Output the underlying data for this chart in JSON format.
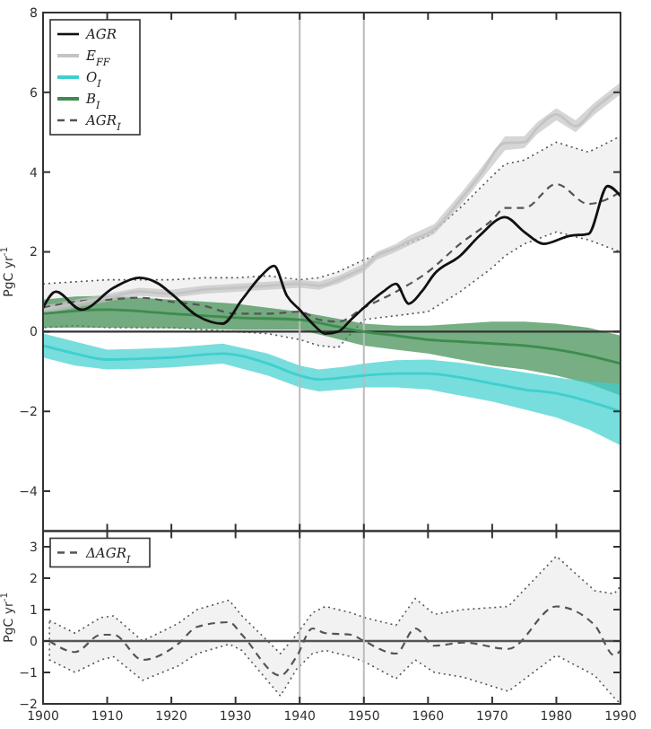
{
  "chart_data": [
    {
      "type": "line",
      "ylabel": "PgC yr$^{-1}$",
      "xlim": [
        1900,
        1990
      ],
      "xticks": [
        1900,
        1910,
        1920,
        1930,
        1940,
        1950,
        1960,
        1970,
        1980,
        1990
      ],
      "ylim": [
        -5,
        8
      ],
      "yticks": [
        -4,
        -2,
        0,
        2,
        4,
        6,
        8
      ],
      "tick_labels": "y",
      "grid": false,
      "legend": "top left",
      "ref_lines": [
        {
          "axis": "y",
          "value": 0,
          "color": "#333333"
        },
        {
          "axis": "x",
          "value": 1940,
          "color": "#bbbbbb"
        },
        {
          "axis": "x",
          "value": 1950,
          "color": "#bbbbbb"
        }
      ],
      "series": [
        {
          "name": "AGR",
          "color": "#111111",
          "line_style": "solid",
          "x": [
            1900,
            1902,
            1906,
            1911,
            1915,
            1918,
            1920,
            1924,
            1928,
            1931,
            1934,
            1936,
            1938,
            1940,
            1942,
            1944,
            1946,
            1948,
            1950,
            1953,
            1955,
            1957,
            1959,
            1961,
            1965,
            1968,
            1972,
            1975,
            1978,
            1982,
            1985,
            1988,
            1990
          ],
          "values": [
            0.6,
            1.0,
            0.55,
            1.1,
            1.35,
            1.2,
            0.95,
            0.4,
            0.2,
            0.8,
            1.4,
            1.65,
            0.9,
            0.55,
            0.2,
            -0.05,
            0.0,
            0.3,
            0.6,
            1.0,
            1.2,
            0.7,
            1.0,
            1.45,
            1.9,
            2.4,
            2.87,
            2.5,
            2.2,
            2.4,
            2.45,
            3.65,
            3.4
          ]
        },
        {
          "name": "E$_{FF}$",
          "color": "#c4c4c4",
          "line_style": "solid",
          "x": [
            1900,
            1905,
            1910,
            1915,
            1920,
            1925,
            1930,
            1935,
            1940,
            1943,
            1946,
            1948,
            1950,
            1952,
            1955,
            1957,
            1961,
            1965,
            1968,
            1972,
            1975,
            1977,
            1980,
            1983,
            1986,
            1990
          ],
          "values": [
            0.55,
            0.7,
            0.85,
            1.0,
            0.95,
            1.05,
            1.1,
            1.15,
            1.2,
            1.15,
            1.3,
            1.45,
            1.6,
            1.9,
            2.1,
            2.27,
            2.57,
            3.3,
            3.9,
            4.73,
            4.75,
            5.1,
            5.45,
            5.15,
            5.6,
            6.1
          ],
          "lower": [
            0.45,
            0.6,
            0.75,
            0.9,
            0.85,
            0.95,
            1.0,
            1.05,
            1.1,
            1.05,
            1.2,
            1.35,
            1.5,
            1.8,
            2.0,
            2.15,
            2.45,
            3.15,
            3.75,
            4.55,
            4.6,
            4.95,
            5.3,
            5.0,
            5.45,
            5.95
          ],
          "upper": [
            0.65,
            0.8,
            0.95,
            1.1,
            1.05,
            1.15,
            1.2,
            1.25,
            1.3,
            1.25,
            1.4,
            1.55,
            1.7,
            2.0,
            2.2,
            2.4,
            2.7,
            3.45,
            4.05,
            4.9,
            4.9,
            5.25,
            5.6,
            5.3,
            5.75,
            6.25
          ]
        },
        {
          "name": "O$_{I}$",
          "color": "#3fcfcf",
          "line_style": "solid",
          "x": [
            1900,
            1905,
            1910,
            1915,
            1920,
            1928,
            1935,
            1940,
            1943,
            1947,
            1950,
            1955,
            1960,
            1965,
            1970,
            1975,
            1980,
            1985,
            1990
          ],
          "values": [
            -0.35,
            -0.55,
            -0.7,
            -0.68,
            -0.65,
            -0.55,
            -0.8,
            -1.1,
            -1.2,
            -1.15,
            -1.1,
            -1.05,
            -1.05,
            -1.15,
            -1.3,
            -1.45,
            -1.55,
            -1.75,
            -2.0
          ],
          "lower": [
            -0.65,
            -0.85,
            -0.95,
            -0.93,
            -0.9,
            -0.8,
            -1.1,
            -1.4,
            -1.5,
            -1.45,
            -1.4,
            -1.4,
            -1.45,
            -1.6,
            -1.75,
            -1.95,
            -2.15,
            -2.45,
            -2.85
          ],
          "upper": [
            -0.05,
            -0.25,
            -0.45,
            -0.43,
            -0.4,
            -0.3,
            -0.55,
            -0.85,
            -0.95,
            -0.88,
            -0.8,
            -0.72,
            -0.7,
            -0.78,
            -0.9,
            -1.02,
            -1.15,
            -1.25,
            -1.3
          ]
        },
        {
          "name": "B$_{I}$",
          "color": "#3d8c4e",
          "line_style": "solid",
          "x": [
            1900,
            1905,
            1910,
            1920,
            1930,
            1940,
            1945,
            1950,
            1955,
            1960,
            1965,
            1970,
            1975,
            1980,
            1985,
            1990
          ],
          "values": [
            0.45,
            0.52,
            0.55,
            0.45,
            0.35,
            0.3,
            0.15,
            0.0,
            -0.1,
            -0.2,
            -0.25,
            -0.3,
            -0.35,
            -0.45,
            -0.6,
            -0.8
          ],
          "lower": [
            0.1,
            0.1,
            0.1,
            0.08,
            0.05,
            0.05,
            -0.15,
            -0.35,
            -0.45,
            -0.55,
            -0.7,
            -0.85,
            -0.95,
            -1.1,
            -1.3,
            -1.6
          ],
          "upper": [
            0.8,
            0.88,
            0.9,
            0.8,
            0.7,
            0.5,
            0.35,
            0.2,
            0.15,
            0.15,
            0.2,
            0.25,
            0.25,
            0.2,
            0.1,
            -0.1
          ]
        },
        {
          "name": "AGR$_{I}$",
          "color": "#555555",
          "line_style": "dashed",
          "x": [
            1900,
            1905,
            1910,
            1915,
            1920,
            1925,
            1930,
            1935,
            1940,
            1943,
            1946,
            1950,
            1955,
            1960,
            1965,
            1970,
            1972,
            1975,
            1980,
            1985,
            1990
          ],
          "values": [
            0.6,
            0.75,
            0.8,
            0.85,
            0.75,
            0.65,
            0.45,
            0.45,
            0.5,
            0.3,
            0.25,
            0.6,
            1.0,
            1.5,
            2.2,
            2.8,
            3.1,
            3.1,
            3.7,
            3.2,
            3.5
          ],
          "lower": [
            0.1,
            0.15,
            0.1,
            0.1,
            0.1,
            0.05,
            0.0,
            -0.05,
            -0.2,
            -0.35,
            -0.4,
            0.3,
            0.4,
            0.5,
            1.0,
            1.6,
            1.9,
            2.2,
            2.5,
            2.3,
            2.0
          ],
          "upper": [
            1.2,
            1.25,
            1.3,
            1.3,
            1.3,
            1.35,
            1.35,
            1.4,
            1.3,
            1.35,
            1.5,
            1.8,
            2.1,
            2.4,
            3.1,
            3.9,
            4.2,
            4.3,
            4.75,
            4.5,
            4.9
          ]
        }
      ]
    },
    {
      "type": "line",
      "ylabel": "PgC yr$^{-1}$",
      "xlim": [
        1900,
        1990
      ],
      "xticks": [
        1900,
        1910,
        1920,
        1930,
        1940,
        1950,
        1960,
        1970,
        1980,
        1990
      ],
      "ylim": [
        -2,
        3.5
      ],
      "yticks": [
        -2,
        -1,
        0,
        1,
        2,
        3
      ],
      "grid": false,
      "legend": "top left",
      "ref_lines": [
        {
          "axis": "y",
          "value": 0,
          "color": "#555555"
        },
        {
          "axis": "x",
          "value": 1940,
          "color": "#bbbbbb"
        },
        {
          "axis": "x",
          "value": 1950,
          "color": "#bbbbbb"
        }
      ],
      "series": [
        {
          "name": "ΔAGR$_{I}$",
          "color": "#555555",
          "line_style": "dashed",
          "x": [
            1901,
            1905,
            1909,
            1911,
            1915.5,
            1921,
            1924,
            1929,
            1931,
            1937,
            1939.5,
            1942,
            1944,
            1948,
            1950,
            1955,
            1958,
            1961,
            1965.5,
            1972.5,
            1980,
            1986,
            1989,
            1990
          ],
          "values": [
            0,
            -0.35,
            0.2,
            0.2,
            -0.6,
            -0.1,
            0.45,
            0.6,
            0.2,
            -1.1,
            -0.5,
            0.4,
            0.25,
            0.2,
            0,
            -0.4,
            0.4,
            -0.15,
            -0.05,
            -0.25,
            1.1,
            0.5,
            -0.45,
            -0.3
          ],
          "lower": [
            -0.6,
            -1.0,
            -0.6,
            -0.5,
            -1.25,
            -0.8,
            -0.4,
            -0.1,
            -0.3,
            -1.75,
            -0.9,
            -0.4,
            -0.3,
            -0.5,
            -0.65,
            -1.2,
            -0.6,
            -1.0,
            -1.15,
            -1.6,
            -0.45,
            -1.1,
            -1.8,
            -2.0
          ],
          "upper": [
            0.65,
            0.25,
            0.75,
            0.8,
            0.0,
            0.55,
            1.0,
            1.3,
            0.8,
            -0.4,
            0.2,
            0.9,
            1.1,
            0.9,
            0.75,
            0.5,
            1.35,
            0.85,
            1.0,
            1.1,
            2.7,
            1.6,
            1.5,
            1.75
          ]
        }
      ]
    }
  ]
}
